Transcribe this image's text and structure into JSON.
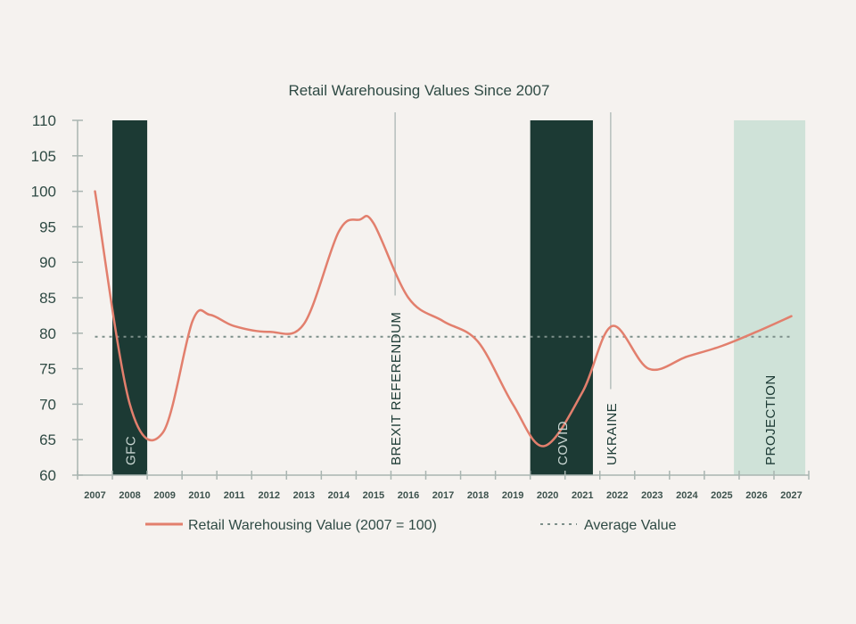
{
  "chart_data": {
    "type": "line",
    "title": "Retail Warehousing Values Since 2007",
    "xlabel": "",
    "ylabel": "",
    "ylim": [
      60,
      110
    ],
    "yticks": [
      60,
      65,
      70,
      75,
      80,
      85,
      90,
      95,
      100,
      105,
      110
    ],
    "categories": [
      "2007",
      "2008",
      "2009",
      "2010",
      "2011",
      "2012",
      "2013",
      "2014",
      "2015",
      "2016",
      "2017",
      "2018",
      "2019",
      "2020",
      "2021",
      "2022",
      "2023",
      "2024",
      "2025",
      "2026",
      "2027"
    ],
    "grid": false,
    "legend_position": "bottom",
    "series": [
      {
        "name": "Retail Warehousing Value (2007 = 100)",
        "color": "#e27f6d",
        "x": [
          2007,
          2008,
          2008.95,
          2009.8,
          2010.3,
          2011,
          2012,
          2013,
          2014,
          2014.6,
          2015,
          2016,
          2017,
          2018,
          2019,
          2019.9,
          2021,
          2021.85,
          2022.9,
          2024,
          2025,
          2026,
          2027
        ],
        "values": [
          100,
          70,
          66,
          81.7,
          82.6,
          81,
          80.2,
          81.3,
          94.3,
          96,
          95.5,
          85,
          81.7,
          78.8,
          70,
          64.1,
          71.7,
          81,
          75,
          76.7,
          78.2,
          80.2,
          82.4
        ]
      }
    ],
    "reference_line": {
      "name": "Average Value",
      "value": 79.5,
      "color": "#7d8f8a"
    },
    "bands": [
      {
        "label": "GFC",
        "start": 2007.5,
        "end": 2008.5,
        "color": "#1c3a34",
        "text_color": "#c9d6d2"
      },
      {
        "label": "COVID",
        "start": 2019.5,
        "end": 2021.3,
        "color": "#1c3a34",
        "text_color": "#c9d6d2"
      },
      {
        "label": "PROJECTION",
        "start": 2025.35,
        "end": 2027.4,
        "color": "#cfe2d8",
        "text_color": "#1c3a34"
      }
    ],
    "event_lines": [
      {
        "label": "BREXIT REFERENDUM",
        "x": 2015.62
      },
      {
        "label": "UKRAINE",
        "x": 2021.81
      }
    ]
  }
}
